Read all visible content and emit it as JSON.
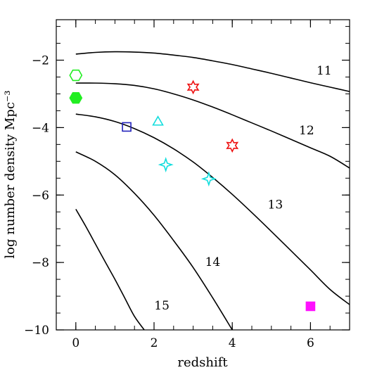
{
  "chart_data": {
    "type": "line",
    "xlabel": "redshift",
    "ylabel": "log number density Mpc⁻³",
    "xlim": [
      -0.5,
      7
    ],
    "ylim": [
      -10,
      -0.8
    ],
    "x_ticks": [
      {
        "value": 0,
        "label": "0"
      },
      {
        "value": 2,
        "label": "2"
      },
      {
        "value": 4,
        "label": "4"
      },
      {
        "value": 6,
        "label": "6"
      }
    ],
    "y_ticks": [
      {
        "value": -2,
        "label": "−2"
      },
      {
        "value": -4,
        "label": "−4"
      },
      {
        "value": -6,
        "label": "−6"
      },
      {
        "value": -8,
        "label": "−8"
      },
      {
        "value": -10,
        "label": "−10"
      }
    ],
    "x_minor_step": 0.5,
    "y_minor_step": 0.5,
    "curves": [
      {
        "label": "11",
        "label_at": [
          6.35,
          -2.43
        ],
        "x": [
          0,
          0.5,
          1,
          1.5,
          2,
          2.5,
          3,
          3.5,
          4,
          4.5,
          5,
          5.5,
          6,
          6.5,
          7
        ],
        "y": [
          -1.82,
          -1.77,
          -1.75,
          -1.76,
          -1.79,
          -1.85,
          -1.92,
          -2.02,
          -2.13,
          -2.26,
          -2.39,
          -2.53,
          -2.67,
          -2.8,
          -2.93
        ]
      },
      {
        "label": "12",
        "label_at": [
          5.9,
          -4.2
        ],
        "x": [
          0,
          0.5,
          1,
          1.5,
          2,
          2.5,
          3,
          3.5,
          4,
          4.5,
          5,
          5.5,
          6,
          6.5,
          7
        ],
        "y": [
          -2.68,
          -2.68,
          -2.7,
          -2.75,
          -2.85,
          -3.0,
          -3.18,
          -3.39,
          -3.62,
          -3.86,
          -4.1,
          -4.35,
          -4.6,
          -4.85,
          -5.2
        ]
      },
      {
        "label": "13",
        "label_at": [
          5.1,
          -6.4
        ],
        "x": [
          0,
          0.5,
          1,
          1.5,
          2,
          2.5,
          3,
          3.5,
          4,
          4.5,
          5,
          5.5,
          6,
          6.5,
          7
        ],
        "y": [
          -3.6,
          -3.68,
          -3.82,
          -4.03,
          -4.3,
          -4.63,
          -5.02,
          -5.48,
          -5.98,
          -6.52,
          -7.08,
          -7.65,
          -8.22,
          -8.8,
          -9.25
        ]
      },
      {
        "label": "14",
        "label_at": [
          3.5,
          -8.1
        ],
        "x": [
          0,
          0.5,
          1,
          1.5,
          2,
          2.5,
          3,
          3.5,
          4
        ],
        "y": [
          -4.72,
          -5.0,
          -5.4,
          -5.95,
          -6.6,
          -7.35,
          -8.15,
          -9.05,
          -10.0
        ]
      },
      {
        "label": "15",
        "label_at": [
          2.2,
          -9.4
        ],
        "x": [
          0,
          0.25,
          0.5,
          0.75,
          1,
          1.25,
          1.5,
          1.75
        ],
        "y": [
          -6.42,
          -6.92,
          -7.45,
          -7.98,
          -8.5,
          -9.05,
          -9.6,
          -10.0
        ]
      }
    ],
    "markers": [
      {
        "shape": "hexagon",
        "filled": false,
        "color": "#22ee22",
        "x": 0,
        "y": -2.45
      },
      {
        "shape": "hexagon",
        "filled": true,
        "color": "#22ee22",
        "x": 0,
        "y": -3.12
      },
      {
        "shape": "square",
        "filled": false,
        "color": "#2222bb",
        "x": 1.3,
        "y": -3.98
      },
      {
        "shape": "triangle",
        "filled": false,
        "color": "#11dddd",
        "x": 2.1,
        "y": -3.82
      },
      {
        "shape": "star4",
        "filled": false,
        "color": "#11dddd",
        "x": 2.3,
        "y": -5.1
      },
      {
        "shape": "star4",
        "filled": false,
        "color": "#11dddd",
        "x": 3.4,
        "y": -5.52
      },
      {
        "shape": "star6",
        "filled": false,
        "color": "#ee1111",
        "x": 3.0,
        "y": -2.8
      },
      {
        "shape": "star6",
        "filled": false,
        "color": "#ee1111",
        "x": 4.0,
        "y": -4.53
      },
      {
        "shape": "square",
        "filled": true,
        "color": "#ff11ff",
        "x": 6.0,
        "y": -9.3
      }
    ]
  }
}
